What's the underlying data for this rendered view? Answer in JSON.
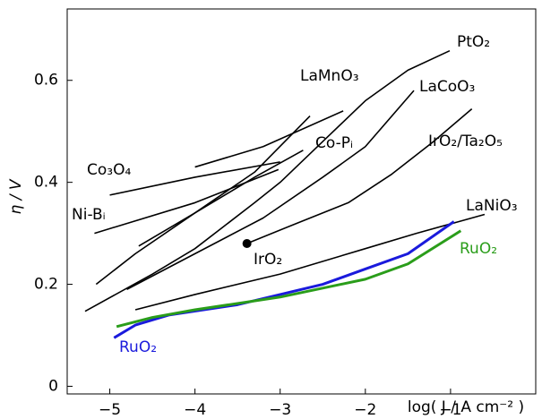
{
  "chart_data": {
    "type": "line",
    "xlabel": "log( J / A cm⁻² )",
    "ylabel": "η / V",
    "xlim": [
      -5.5,
      0
    ],
    "ylim": [
      -0.015,
      0.74
    ],
    "xticks": [
      {
        "value": -5,
        "label": "−5"
      },
      {
        "value": -4,
        "label": "−4"
      },
      {
        "value": -3,
        "label": "−3"
      },
      {
        "value": -2,
        "label": "−2"
      },
      {
        "value": -1,
        "label": "−1"
      }
    ],
    "yticks": [
      0,
      0.2,
      0.4,
      0.6
    ],
    "series": [
      {
        "name": "PtO₂",
        "color": "#000000",
        "x": [
          -5.29,
          -4.5,
          -4,
          -3.3,
          -3,
          -2.5,
          -2,
          -1.5,
          -1.01
        ],
        "values": [
          0.147,
          0.22,
          0.27,
          0.36,
          0.4,
          0.48,
          0.56,
          0.62,
          0.658
        ]
      },
      {
        "name": "LaMnO₃",
        "color": "#000000",
        "x": [
          -5.16,
          -4.7,
          -4,
          -3.3,
          -2.65
        ],
        "values": [
          0.2,
          0.26,
          0.34,
          0.42,
          0.53
        ]
      },
      {
        "name": "LaCoO₃",
        "color": "#000000",
        "x": [
          -4.8,
          -4,
          -3.2,
          -2.5,
          -2,
          -1.43
        ],
        "values": [
          0.19,
          0.26,
          0.33,
          0.41,
          0.47,
          0.58
        ]
      },
      {
        "name": "Co-Pᵢ",
        "color": "#000000",
        "x": [
          -4.66,
          -4,
          -3.3,
          -2.73
        ],
        "values": [
          0.275,
          0.34,
          0.41,
          0.463
        ]
      },
      {
        "name": "IrO₂/Ta₂O₅",
        "color": "#000000",
        "x": [
          -3.39,
          -2.8,
          -2.2,
          -1.69,
          -1.2,
          -0.75
        ],
        "values": [
          0.28,
          0.32,
          0.36,
          0.416,
          0.48,
          0.544
        ]
      },
      {
        "name": "LaNiO₃",
        "color": "#000000",
        "x": [
          -4.7,
          -4,
          -3,
          -2,
          -1.4,
          -0.6
        ],
        "values": [
          0.15,
          0.18,
          0.22,
          0.27,
          0.3,
          0.337
        ]
      },
      {
        "name": "Co₃O₄",
        "color": "#000000",
        "x": [
          -5,
          -4,
          -3
        ],
        "values": [
          0.375,
          0.41,
          0.44
        ]
      },
      {
        "name": "Ni-Bᵢ",
        "color": "#000000",
        "x": [
          -5.18,
          -4,
          -3.02
        ],
        "values": [
          0.3,
          0.36,
          0.425
        ]
      },
      {
        "color": "#000000",
        "x": [
          -4,
          -3.2,
          -2.26
        ],
        "values": [
          0.43,
          0.47,
          0.54
        ]
      },
      {
        "name": "IrO₂",
        "color": "#000000",
        "marker": true,
        "x": [
          -3.39
        ],
        "values": [
          0.28
        ]
      },
      {
        "name": "RuO₂",
        "color": "#1a1adc",
        "x": [
          -4.95,
          -4.7,
          -4.3,
          -3.5,
          -3,
          -2.5,
          -2,
          -1.5,
          -0.96
        ],
        "values": [
          0.095,
          0.12,
          0.14,
          0.16,
          0.18,
          0.2,
          0.23,
          0.26,
          0.323
        ]
      },
      {
        "name": "RuO₂",
        "color": "#2a9d1a",
        "x": [
          -4.92,
          -4.5,
          -4,
          -3,
          -2,
          -1.5,
          -0.88
        ],
        "values": [
          0.117,
          0.135,
          0.15,
          0.175,
          0.21,
          0.24,
          0.305
        ]
      }
    ]
  }
}
